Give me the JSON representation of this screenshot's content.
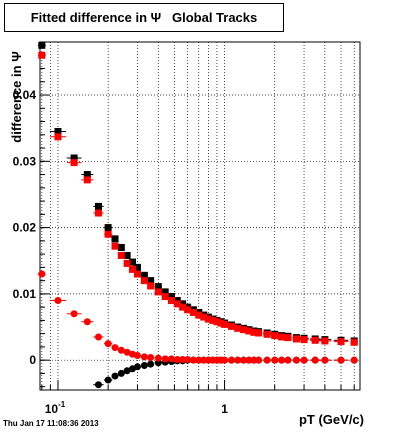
{
  "title": "Fitted difference in Ψ   Global Tracks",
  "ylabel": "difference in Ψ",
  "xlabel": "pT (GeV/c)",
  "timestamp": "Thu Jan 17 11:08:36 2013",
  "colors": {
    "black_series": "#000000",
    "red_series": "#ff0000",
    "grid": "#000000"
  },
  "chart_data": {
    "type": "scatter",
    "title": "Fitted difference in Ψ   Global Tracks",
    "xlabel": "pT (GeV/c)",
    "ylabel": "difference in Ψ",
    "xscale": "log",
    "xlim": [
      0.078,
      6.5
    ],
    "ylim": [
      -0.0045,
      0.048
    ],
    "grid": true,
    "legend": "none",
    "x_ticks": [
      {
        "value": 0.1,
        "base": "10",
        "exp": "-1"
      },
      {
        "value": 1,
        "label": "1"
      }
    ],
    "y_ticks": [
      0,
      0.01,
      0.02,
      0.03,
      0.04
    ],
    "y_tick_labels": [
      "0",
      "0.01",
      "0.02",
      "0.03",
      "0.04"
    ],
    "x": [
      0.08,
      0.1,
      0.125,
      0.15,
      0.175,
      0.2,
      0.22,
      0.24,
      0.26,
      0.28,
      0.3,
      0.33,
      0.36,
      0.4,
      0.44,
      0.48,
      0.52,
      0.56,
      0.6,
      0.65,
      0.7,
      0.75,
      0.8,
      0.85,
      0.9,
      0.95,
      1.0,
      1.1,
      1.2,
      1.3,
      1.4,
      1.5,
      1.6,
      1.8,
      2.0,
      2.2,
      2.4,
      2.7,
      3.0,
      3.5,
      4.0,
      5.0,
      6.0
    ],
    "series": [
      {
        "color": "#000000",
        "marker": "square",
        "values": [
          0.0475,
          0.0345,
          0.0305,
          0.028,
          0.0232,
          0.02,
          0.0183,
          0.017,
          0.0158,
          0.0148,
          0.014,
          0.0128,
          0.012,
          0.0111,
          0.0103,
          0.0096,
          0.009,
          0.0085,
          0.008,
          0.0076,
          0.0072,
          0.0068,
          0.0065,
          0.0062,
          0.006,
          0.0058,
          0.0056,
          0.0053,
          0.005,
          0.0048,
          0.0046,
          0.0044,
          0.0043,
          0.0041,
          0.0039,
          0.0037,
          0.0036,
          0.0034,
          0.0033,
          0.0032,
          0.0031,
          0.003,
          0.0029
        ]
      },
      {
        "color": "#ff0000",
        "marker": "square",
        "values": [
          0.046,
          0.0337,
          0.0298,
          0.0272,
          0.0222,
          0.019,
          0.0172,
          0.0158,
          0.0146,
          0.0137,
          0.013,
          0.012,
          0.0112,
          0.0103,
          0.0096,
          0.009,
          0.0085,
          0.008,
          0.0076,
          0.0072,
          0.0068,
          0.0065,
          0.0062,
          0.006,
          0.0058,
          0.0056,
          0.0054,
          0.0051,
          0.0048,
          0.0046,
          0.0044,
          0.0042,
          0.0041,
          0.0039,
          0.0037,
          0.0035,
          0.0034,
          0.0032,
          0.0031,
          0.003,
          0.0029,
          0.0028,
          0.0027
        ]
      },
      {
        "color": "#000000",
        "marker": "circle",
        "values": [
          null,
          null,
          null,
          null,
          -0.0037,
          -0.003,
          -0.0024,
          -0.002,
          -0.0016,
          -0.0013,
          -0.001,
          -0.0008,
          -0.0006,
          -0.0004,
          -0.0003,
          -0.0002,
          -0.0001,
          -0.0001,
          0.0,
          0.0,
          0.0,
          0.0,
          0.0,
          0.0,
          0.0,
          0.0,
          0.0,
          0.0,
          0.0,
          0.0,
          0.0,
          0.0,
          0.0,
          0.0,
          0.0,
          0.0,
          0.0,
          0.0,
          0.0,
          0.0,
          0.0,
          0.0,
          0.0
        ]
      },
      {
        "color": "#ff0000",
        "marker": "circle",
        "values": [
          0.013,
          0.009,
          0.007,
          0.0058,
          0.0035,
          0.0025,
          0.0019,
          0.0015,
          0.0012,
          0.0009,
          0.0007,
          0.0005,
          0.0004,
          0.0003,
          0.0002,
          0.0002,
          0.0001,
          0.0001,
          0.0001,
          0.0,
          0.0,
          0.0,
          0.0,
          0.0,
          0.0,
          0.0,
          0.0,
          0.0,
          0.0,
          0.0,
          0.0,
          0.0,
          0.0,
          0.0,
          0.0,
          0.0,
          0.0,
          0.0,
          0.0,
          0.0,
          0.0,
          0.0,
          0.0
        ]
      }
    ]
  }
}
